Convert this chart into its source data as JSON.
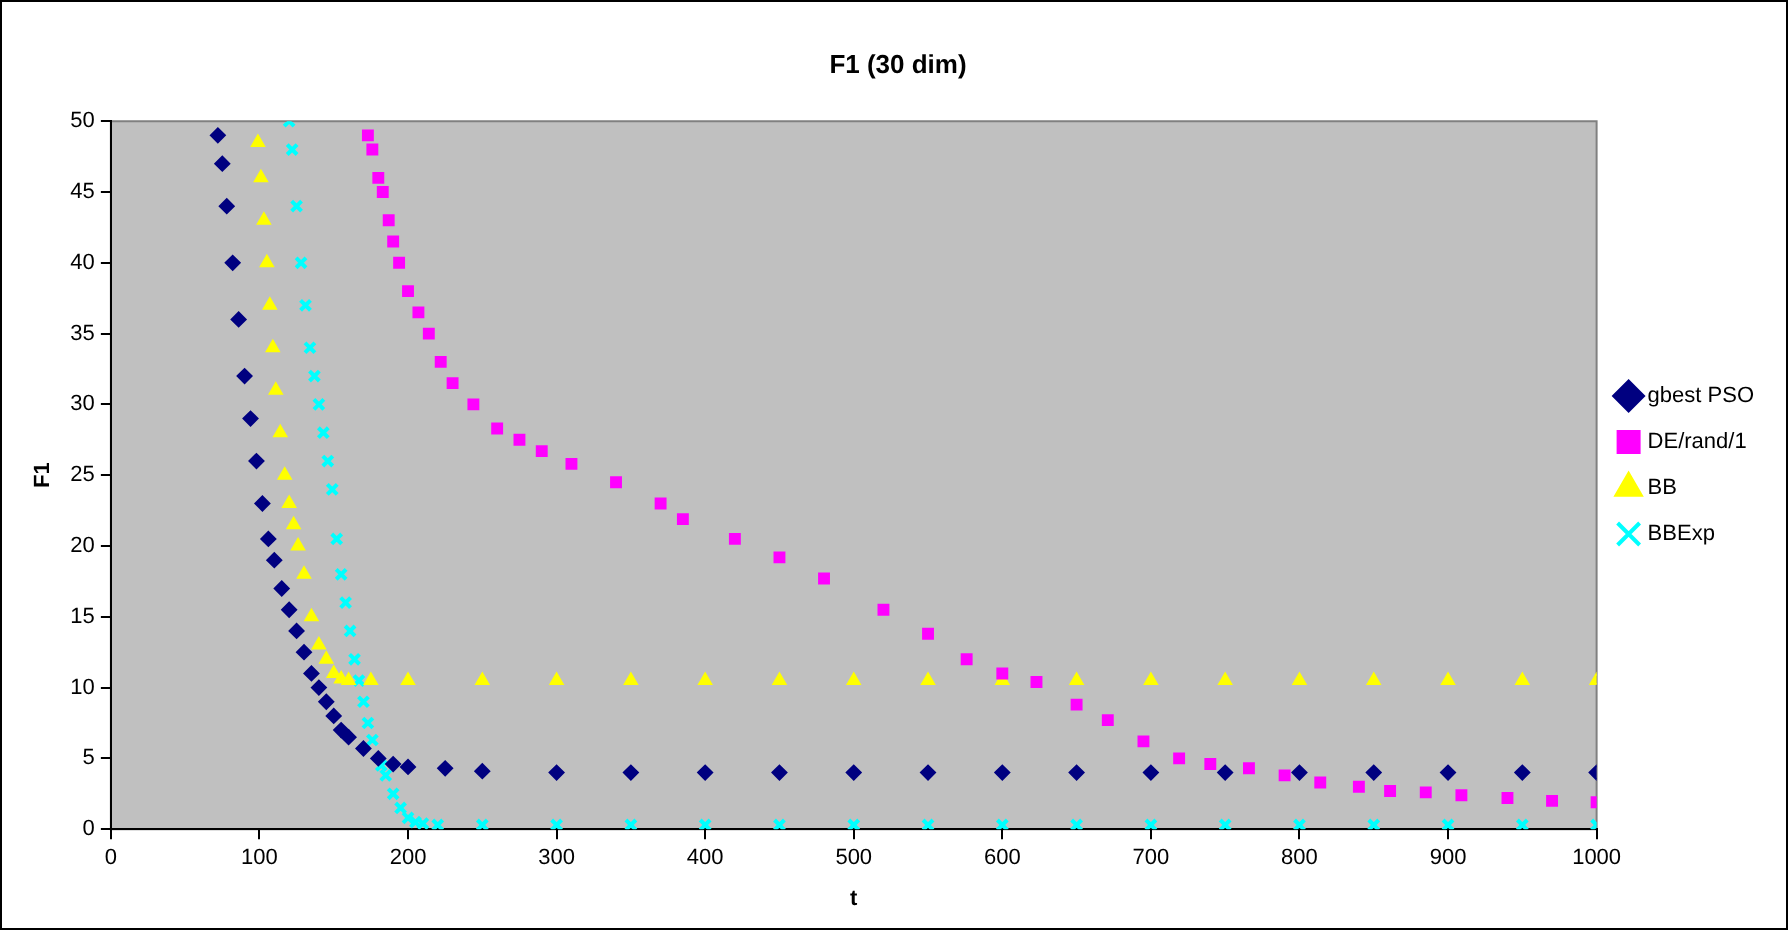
{
  "chart_data": {
    "type": "scatter",
    "title": "F1 (30 dim)",
    "xlabel": "t",
    "ylabel": "F1",
    "xlim": [
      0,
      1000
    ],
    "xticks": [
      0,
      100,
      200,
      300,
      400,
      500,
      600,
      700,
      800,
      900,
      1000
    ],
    "ylim": [
      0,
      50
    ],
    "yticks": [
      0,
      5,
      10,
      15,
      20,
      25,
      30,
      35,
      40,
      45,
      50
    ],
    "grid": false,
    "legend": "right",
    "series": [
      {
        "name": "gbest PSO",
        "color": "#000080",
        "marker": "diamond",
        "x": [
          72,
          75,
          78,
          82,
          86,
          90,
          94,
          98,
          102,
          106,
          110,
          115,
          120,
          125,
          130,
          135,
          140,
          145,
          150,
          155,
          160,
          170,
          180,
          190,
          200,
          225,
          250,
          300,
          350,
          400,
          450,
          500,
          550,
          600,
          650,
          700,
          750,
          800,
          850,
          900,
          950,
          1000
        ],
        "values": [
          49,
          47,
          44,
          40,
          36,
          32,
          29,
          26,
          23,
          20.5,
          19,
          17,
          15.5,
          14,
          12.5,
          11,
          10,
          9,
          8,
          7,
          6.5,
          5.7,
          5,
          4.6,
          4.4,
          4.3,
          4.1,
          4,
          4,
          4,
          4,
          4,
          4,
          4,
          4,
          4,
          4,
          4,
          4,
          4,
          4,
          4
        ]
      },
      {
        "name": "DE/rand/1",
        "color": "#ff00ff",
        "marker": "square",
        "x": [
          173,
          176,
          180,
          183,
          187,
          190,
          194,
          200,
          207,
          214,
          222,
          230,
          244,
          260,
          275,
          290,
          310,
          340,
          370,
          385,
          420,
          450,
          480,
          520,
          550,
          576,
          600,
          623,
          650,
          671,
          695,
          719,
          740,
          766,
          790,
          814,
          840,
          861,
          885,
          909,
          940,
          970,
          1000
        ],
        "values": [
          49,
          48,
          46,
          45,
          43,
          41.5,
          40,
          38,
          36.5,
          35,
          33,
          31.5,
          30,
          28.3,
          27.5,
          26.7,
          25.8,
          24.5,
          23,
          21.9,
          20.5,
          19.2,
          17.7,
          15.5,
          13.8,
          12,
          11,
          10.4,
          8.8,
          7.7,
          6.2,
          5,
          4.6,
          4.3,
          3.8,
          3.3,
          3,
          2.7,
          2.6,
          2.4,
          2.2,
          2,
          1.9
        ]
      },
      {
        "name": "BB",
        "color": "#ffff00",
        "marker": "triangle",
        "x": [
          99,
          101,
          103,
          105,
          107,
          109,
          111,
          114,
          117,
          120,
          123,
          126,
          130,
          135,
          140,
          145,
          150,
          155,
          160,
          175,
          200,
          250,
          300,
          350,
          400,
          450,
          500,
          550,
          600,
          650,
          700,
          750,
          800,
          850,
          900,
          950,
          1000
        ],
        "values": [
          48.5,
          46,
          43,
          40,
          37,
          34,
          31,
          28,
          25,
          23,
          21.5,
          20,
          18,
          15,
          13,
          12,
          11,
          10.6,
          10.5,
          10.5,
          10.5,
          10.5,
          10.5,
          10.5,
          10.5,
          10.5,
          10.5,
          10.5,
          10.5,
          10.5,
          10.5,
          10.5,
          10.5,
          10.5,
          10.5,
          10.5,
          10.5
        ]
      },
      {
        "name": "BBExp",
        "color": "#00ffff",
        "marker": "cross",
        "x": [
          120,
          122,
          125,
          128,
          131,
          134,
          137,
          140,
          143,
          146,
          149,
          152,
          155,
          158,
          161,
          164,
          167,
          170,
          173,
          176,
          182,
          185,
          190,
          195,
          200,
          205,
          210,
          220,
          250,
          300,
          350,
          400,
          450,
          500,
          550,
          600,
          650,
          700,
          750,
          800,
          850,
          900,
          950,
          1000
        ],
        "values": [
          50,
          48,
          44,
          40,
          37,
          34,
          32,
          30,
          28,
          26,
          24,
          20.5,
          18,
          16,
          14,
          12,
          10.5,
          9,
          7.5,
          6.3,
          4.5,
          3.8,
          2.5,
          1.5,
          0.8,
          0.5,
          0.4,
          0.3,
          0.3,
          0.3,
          0.3,
          0.3,
          0.3,
          0.3,
          0.3,
          0.3,
          0.3,
          0.3,
          0.3,
          0.3,
          0.3,
          0.3,
          0.3,
          0.3
        ]
      }
    ]
  }
}
